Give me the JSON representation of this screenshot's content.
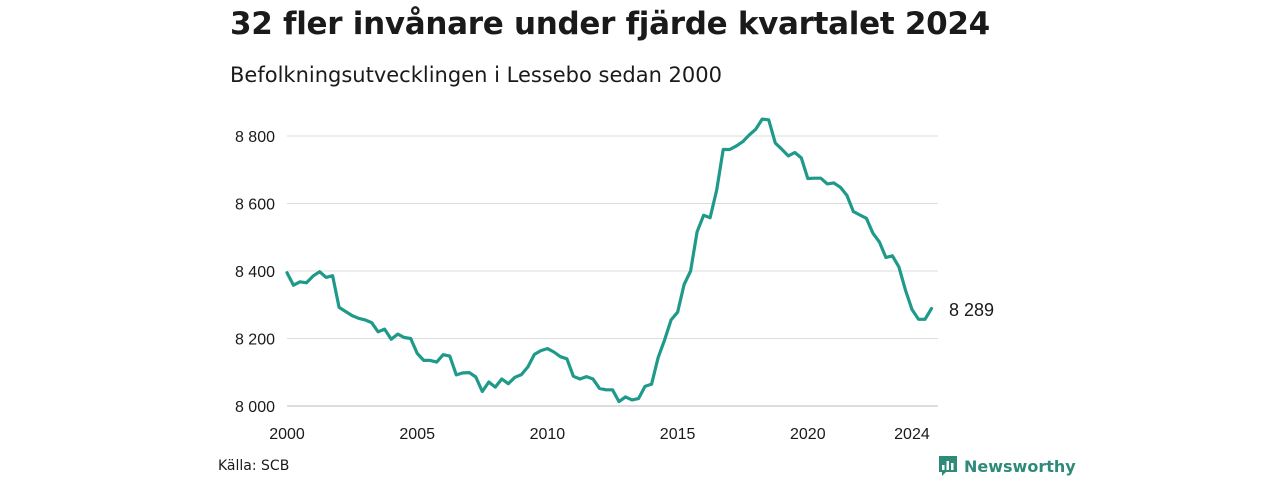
{
  "header": {
    "title": "32 fler invånare under fjärde kvartalet 2024",
    "subtitle": "Befolkningsutvecklingen i Lessebo sedan 2000"
  },
  "footer": {
    "source": "Källa: SCB",
    "brand": "Newsworthy",
    "brand_icon": "bar-chart-icon"
  },
  "colors": {
    "line": "#1f9a8a",
    "grid": "#dddddd",
    "brand": "#2e8b7a"
  },
  "chart_data": {
    "type": "line",
    "title": "32 fler invånare under fjärde kvartalet 2024",
    "subtitle": "Befolkningsutvecklingen i Lessebo sedan 2000",
    "xlabel": "",
    "ylabel": "",
    "xlim": [
      2000,
      2025
    ],
    "ylim": [
      8000,
      8850
    ],
    "x_ticks": [
      2000,
      2005,
      2010,
      2015,
      2020,
      2024
    ],
    "x_tick_labels": [
      "2000",
      "2005",
      "2010",
      "2015",
      "2020",
      "2024"
    ],
    "y_ticks": [
      8000,
      8200,
      8400,
      8600,
      8800
    ],
    "y_tick_labels": [
      "8 000",
      "8 200",
      "8 400",
      "8 600",
      "8 800"
    ],
    "grid": "horizontal",
    "end_label": "8 289",
    "series": [
      {
        "x": [
          2000.0,
          2000.25,
          2000.5,
          2000.75,
          2001.0,
          2001.25,
          2001.5,
          2001.75,
          2002.0,
          2002.25,
          2002.5,
          2002.75,
          2003.0,
          2003.25,
          2003.5,
          2003.75,
          2004.0,
          2004.25,
          2004.5,
          2004.75,
          2005.0,
          2005.25,
          2005.5,
          2005.75,
          2006.0,
          2006.25,
          2006.5,
          2006.75,
          2007.0,
          2007.25,
          2007.5,
          2007.75,
          2008.0,
          2008.25,
          2008.5,
          2008.75,
          2009.0,
          2009.25,
          2009.5,
          2009.75,
          2010.0,
          2010.25,
          2010.5,
          2010.75,
          2011.0,
          2011.25,
          2011.5,
          2011.75,
          2012.0,
          2012.25,
          2012.5,
          2012.75,
          2013.0,
          2013.25,
          2013.5,
          2013.75,
          2014.0,
          2014.25,
          2014.5,
          2014.75,
          2015.0,
          2015.25,
          2015.5,
          2015.75,
          2016.0,
          2016.25,
          2016.5,
          2016.75,
          2017.0,
          2017.25,
          2017.5,
          2017.75,
          2018.0,
          2018.25,
          2018.5,
          2018.75,
          2019.0,
          2019.25,
          2019.5,
          2019.75,
          2020.0,
          2020.25,
          2020.5,
          2020.75,
          2021.0,
          2021.25,
          2021.5,
          2021.75,
          2022.0,
          2022.25,
          2022.5,
          2022.75,
          2023.0,
          2023.25,
          2023.5,
          2023.75,
          2024.0,
          2024.25,
          2024.5,
          2024.75
        ],
        "values": [
          8395,
          8358,
          8368,
          8365,
          8385,
          8398,
          8381,
          8386,
          8292,
          8280,
          8268,
          8260,
          8255,
          8247,
          8220,
          8228,
          8198,
          8213,
          8203,
          8200,
          8156,
          8135,
          8135,
          8130,
          8152,
          8148,
          8092,
          8098,
          8099,
          8086,
          8043,
          8071,
          8056,
          8080,
          8066,
          8085,
          8093,
          8116,
          8153,
          8164,
          8170,
          8160,
          8146,
          8140,
          8088,
          8080,
          8087,
          8080,
          8052,
          8048,
          8048,
          8013,
          8027,
          8018,
          8022,
          8058,
          8065,
          8143,
          8196,
          8255,
          8278,
          8360,
          8400,
          8516,
          8565,
          8558,
          8640,
          8760,
          8760,
          8770,
          8783,
          8803,
          8820,
          8850,
          8848,
          8779,
          8761,
          8741,
          8751,
          8735,
          8674,
          8675,
          8675,
          8658,
          8661,
          8648,
          8624,
          8576,
          8566,
          8556,
          8512,
          8486,
          8440,
          8445,
          8412,
          8343,
          8286,
          8257,
          8257,
          8289
        ]
      }
    ]
  }
}
